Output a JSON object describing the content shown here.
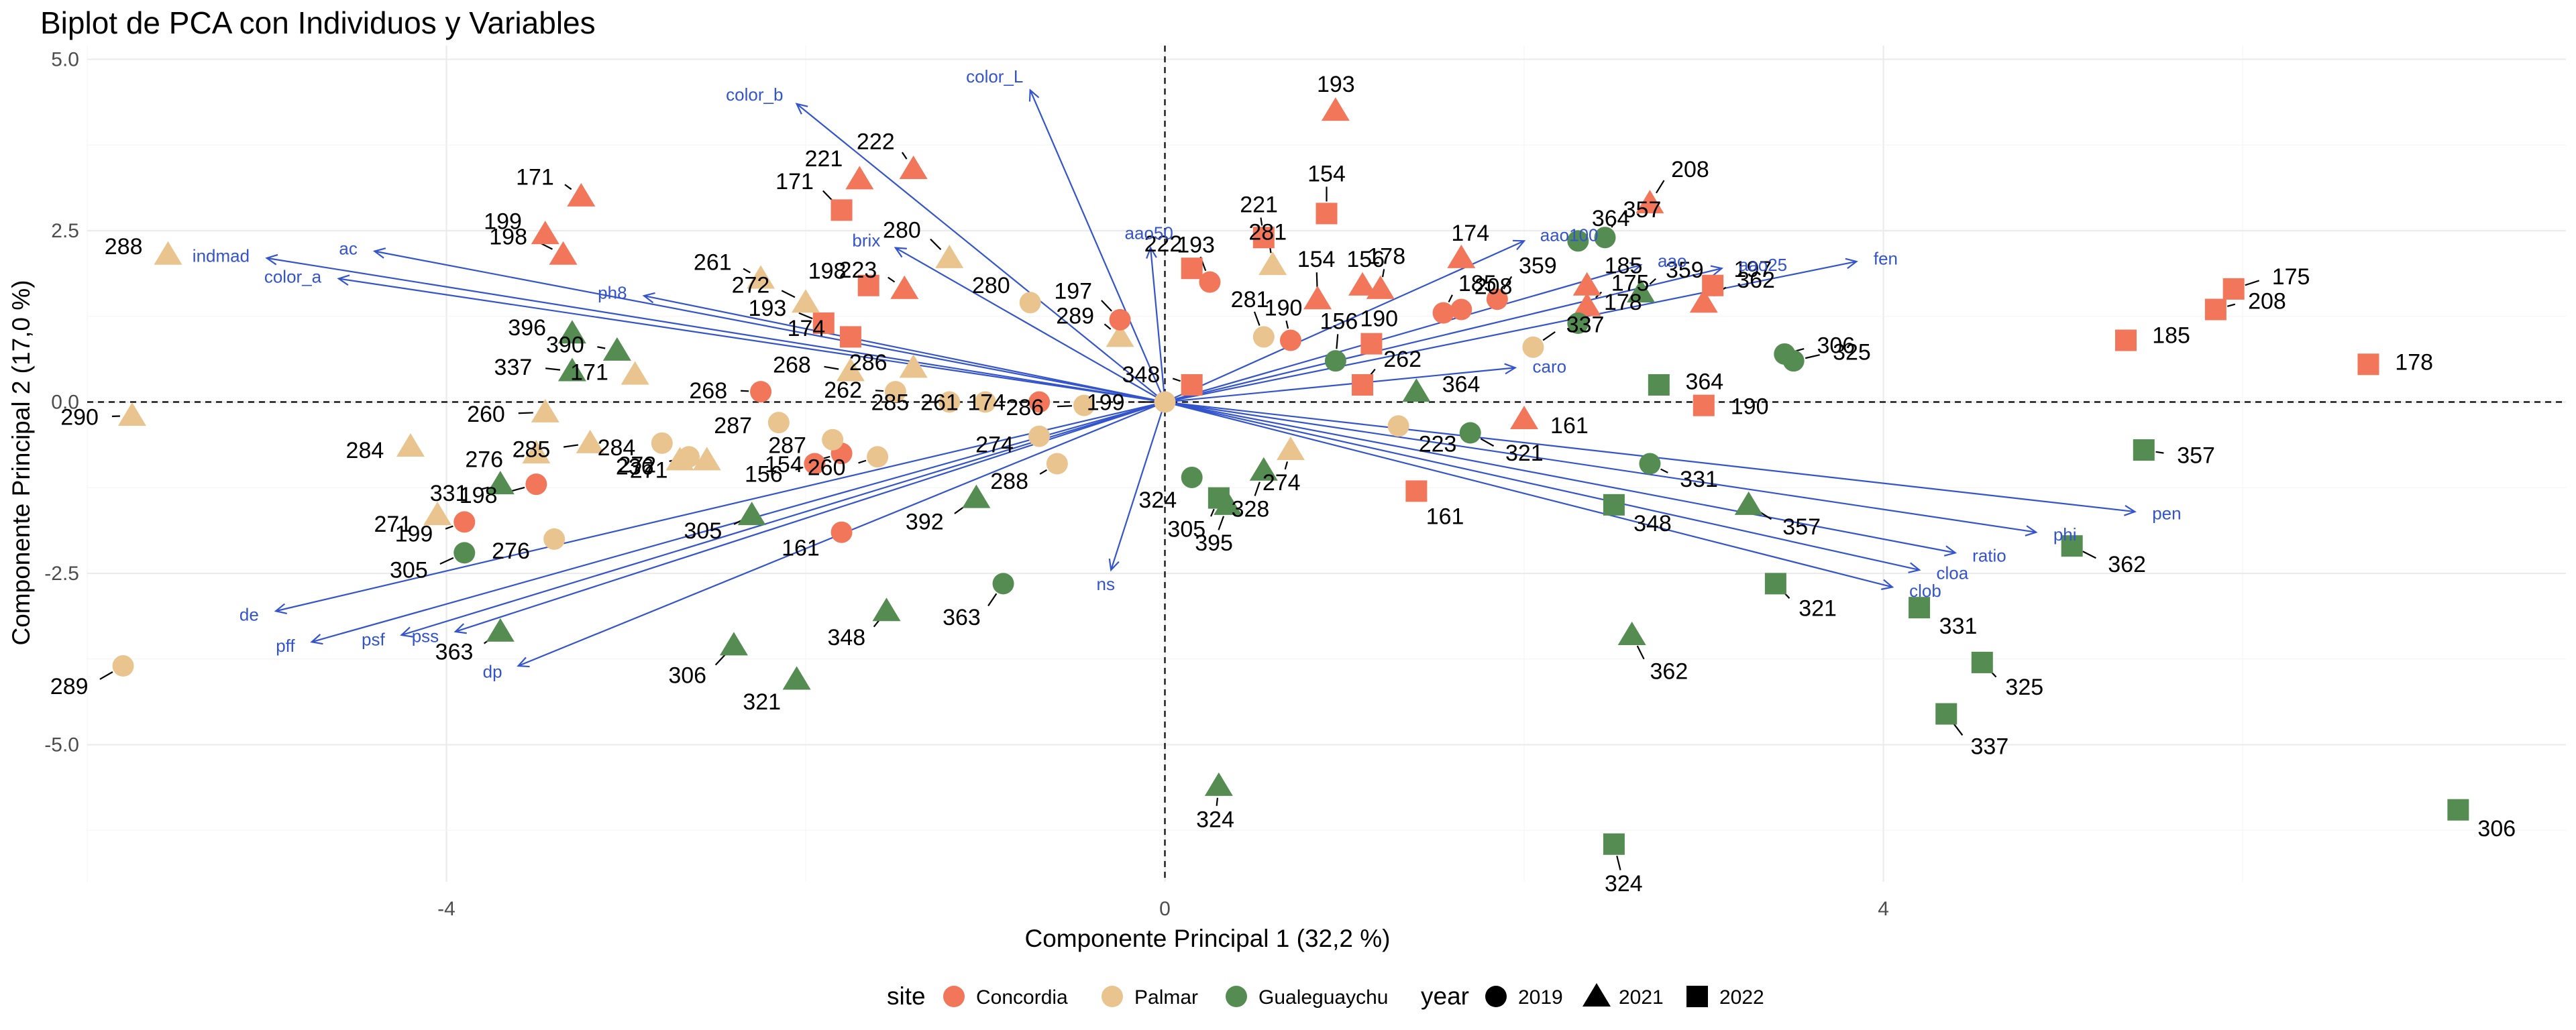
{
  "chart_data": {
    "type": "scatter",
    "title": "Biplot de PCA con Individuos y Variables",
    "xlabel": "Componente Principal 1 (32,2 %)",
    "ylabel": "Componente Principal 2 (17,0 %)",
    "xlim": [
      -6.0,
      7.8
    ],
    "ylim": [
      -7.0,
      5.2
    ],
    "xticks": [
      -4,
      0,
      4
    ],
    "yticks": [
      -5.0,
      -2.5,
      0.0,
      2.5,
      5.0
    ],
    "grid": true,
    "reference_lines": {
      "x": 0,
      "y": 0,
      "style": "dashed"
    },
    "legend": {
      "position": "bottom",
      "site_title": "site",
      "year_title": "year",
      "sites": [
        {
          "name": "Concordia",
          "color": "#f2765a"
        },
        {
          "name": "Palmar",
          "color": "#e9c48f"
        },
        {
          "name": "Gualeguaychu",
          "color": "#548c52"
        }
      ],
      "years": [
        {
          "name": "2019",
          "shape": "circle"
        },
        {
          "name": "2021",
          "shape": "triangle"
        },
        {
          "name": "2022",
          "shape": "square"
        }
      ]
    },
    "variables": [
      {
        "name": "color_L",
        "x": -0.75,
        "y": 4.55
      },
      {
        "name": "color_b",
        "x": -2.05,
        "y": 4.35
      },
      {
        "name": "indmad",
        "x": -5.0,
        "y": 2.1
      },
      {
        "name": "ac",
        "x": -4.4,
        "y": 2.2
      },
      {
        "name": "color_a",
        "x": -4.6,
        "y": 1.8
      },
      {
        "name": "ph8",
        "x": -2.9,
        "y": 1.55
      },
      {
        "name": "brix",
        "x": -1.5,
        "y": 2.25
      },
      {
        "name": "aao50",
        "x": -0.08,
        "y": 2.25
      },
      {
        "name": "aao100",
        "x": 2.0,
        "y": 2.35
      },
      {
        "name": "aao",
        "x": 2.65,
        "y": 2.0
      },
      {
        "name": "aao25",
        "x": 3.1,
        "y": 1.95
      },
      {
        "name": "fen",
        "x": 3.85,
        "y": 2.05
      },
      {
        "name": "caro",
        "x": 1.95,
        "y": 0.5
      },
      {
        "name": "ns",
        "x": -0.3,
        "y": -2.45
      },
      {
        "name": "pen",
        "x": 5.4,
        "y": -1.6
      },
      {
        "name": "phi",
        "x": 4.85,
        "y": -1.9
      },
      {
        "name": "ratio",
        "x": 4.4,
        "y": -2.2
      },
      {
        "name": "cloa",
        "x": 4.2,
        "y": -2.45
      },
      {
        "name": "clob",
        "x": 4.05,
        "y": -2.7
      },
      {
        "name": "de",
        "x": -4.95,
        "y": -3.05
      },
      {
        "name": "pff",
        "x": -4.75,
        "y": -3.5
      },
      {
        "name": "psf",
        "x": -4.25,
        "y": -3.4
      },
      {
        "name": "pss",
        "x": -3.95,
        "y": -3.35
      },
      {
        "name": "dp",
        "x": -3.6,
        "y": -3.85
      }
    ],
    "points": [
      {
        "label": "288",
        "site": "Palmar",
        "year": "2021",
        "x": -5.55,
        "y": 2.15
      },
      {
        "label": "290",
        "site": "Palmar",
        "year": "2021",
        "x": -5.75,
        "y": -0.2
      },
      {
        "label": "289",
        "site": "Palmar",
        "year": "2019",
        "x": -5.8,
        "y": -3.85
      },
      {
        "label": "199",
        "site": "Concordia",
        "year": "2021",
        "x": -3.45,
        "y": 2.45
      },
      {
        "label": "171",
        "site": "Concordia",
        "year": "2021",
        "x": -3.25,
        "y": 3.0
      },
      {
        "label": "198",
        "site": "Concordia",
        "year": "2021",
        "x": -3.35,
        "y": 2.15
      },
      {
        "label": "396",
        "site": "Gualeguaychu",
        "year": "2021",
        "x": -3.3,
        "y": 1.0
      },
      {
        "label": "390",
        "site": "Gualeguaychu",
        "year": "2021",
        "x": -3.05,
        "y": 0.75
      },
      {
        "label": "337",
        "site": "Gualeguaychu",
        "year": "2021",
        "x": -3.3,
        "y": 0.45
      },
      {
        "label": "171",
        "site": "Palmar",
        "year": "2021",
        "x": -2.95,
        "y": 0.4
      },
      {
        "label": "268",
        "site": "Concordia",
        "year": "2019",
        "x": -2.25,
        "y": 0.15
      },
      {
        "label": "260",
        "site": "Palmar",
        "year": "2021",
        "x": -3.45,
        "y": -0.15
      },
      {
        "label": "284",
        "site": "Palmar",
        "year": "2021",
        "x": -4.2,
        "y": -0.65
      },
      {
        "label": "276",
        "site": "Palmar",
        "year": "2021",
        "x": -3.5,
        "y": -0.75
      },
      {
        "label": "285",
        "site": "Palmar",
        "year": "2021",
        "x": -3.2,
        "y": -0.6
      },
      {
        "label": "284",
        "site": "Palmar",
        "year": "2019",
        "x": -2.8,
        "y": -0.6
      },
      {
        "label": "331",
        "site": "Gualeguaychu",
        "year": "2021",
        "x": -3.7,
        "y": -1.2
      },
      {
        "label": "198",
        "site": "Concordia",
        "year": "2019",
        "x": -3.5,
        "y": -1.2
      },
      {
        "label": "271",
        "site": "Palmar",
        "year": "2021",
        "x": -4.05,
        "y": -1.65
      },
      {
        "label": "199",
        "site": "Concordia",
        "year": "2019",
        "x": -3.9,
        "y": -1.75
      },
      {
        "label": "305",
        "site": "Gualeguaychu",
        "year": "2019",
        "x": -3.9,
        "y": -2.2
      },
      {
        "label": "276",
        "site": "Palmar",
        "year": "2019",
        "x": -3.4,
        "y": -2.0
      },
      {
        "label": "363",
        "site": "Gualeguaychu",
        "year": "2021",
        "x": -3.7,
        "y": -3.35
      },
      {
        "label": "306",
        "site": "Gualeguaychu",
        "year": "2021",
        "x": -2.4,
        "y": -3.55
      },
      {
        "label": "321",
        "site": "Gualeguaychu",
        "year": "2021",
        "x": -2.05,
        "y": -4.05
      },
      {
        "label": "348",
        "site": "Gualeguaychu",
        "year": "2021",
        "x": -1.55,
        "y": -3.05
      },
      {
        "label": "363",
        "site": "Gualeguaychu",
        "year": "2019",
        "x": -0.9,
        "y": -2.65
      },
      {
        "label": "161",
        "site": "Concordia",
        "year": "2019",
        "x": -1.8,
        "y": -1.9
      },
      {
        "label": "305",
        "site": "Gualeguaychu",
        "year": "2021",
        "x": -2.3,
        "y": -1.65
      },
      {
        "label": "392",
        "site": "Gualeguaychu",
        "year": "2021",
        "x": -1.05,
        "y": -1.4
      },
      {
        "label": "236",
        "site": "Palmar",
        "year": "2021",
        "x": -2.7,
        "y": -0.85
      },
      {
        "label": "272",
        "site": "Palmar",
        "year": "2019",
        "x": -2.65,
        "y": -0.8
      },
      {
        "label": "271",
        "site": "Palmar",
        "year": "2021",
        "x": -2.55,
        "y": -0.85
      },
      {
        "label": "287",
        "site": "Palmar",
        "year": "2019",
        "x": -2.15,
        "y": -0.3
      },
      {
        "label": "156",
        "site": "Concordia",
        "year": "2019",
        "x": -1.95,
        "y": -0.9
      },
      {
        "label": "154",
        "site": "Concordia",
        "year": "2019",
        "x": -1.8,
        "y": -0.75
      },
      {
        "label": "287",
        "site": "Palmar",
        "year": "2019",
        "x": -1.85,
        "y": -0.55
      },
      {
        "label": "260",
        "site": "Palmar",
        "year": "2019",
        "x": -1.6,
        "y": -0.8
      },
      {
        "label": "268",
        "site": "Palmar",
        "year": "2021",
        "x": -1.75,
        "y": 0.45
      },
      {
        "label": "286",
        "site": "Palmar",
        "year": "2021",
        "x": -1.4,
        "y": 0.5
      },
      {
        "label": "262",
        "site": "Palmar",
        "year": "2019",
        "x": -1.5,
        "y": 0.15
      },
      {
        "label": "285",
        "site": "Palmar",
        "year": "2019",
        "x": -1.2,
        "y": 0.0
      },
      {
        "label": "261",
        "site": "Palmar",
        "year": "2019",
        "x": -1.0,
        "y": 0.0
      },
      {
        "label": "174",
        "site": "Concordia",
        "year": "2019",
        "x": -0.7,
        "y": 0.0
      },
      {
        "label": "286",
        "site": "Palmar",
        "year": "2019",
        "x": -0.45,
        "y": -0.05
      },
      {
        "label": "274",
        "site": "Palmar",
        "year": "2019",
        "x": -0.7,
        "y": -0.5
      },
      {
        "label": "288",
        "site": "Palmar",
        "year": "2019",
        "x": -0.6,
        "y": -0.9
      },
      {
        "label": "193",
        "site": "Concordia",
        "year": "2022",
        "x": -1.9,
        "y": 1.15
      },
      {
        "label": "174",
        "site": "Concordia",
        "year": "2022",
        "x": -1.75,
        "y": 0.95
      },
      {
        "label": "261",
        "site": "Palmar",
        "year": "2021",
        "x": -2.25,
        "y": 1.8
      },
      {
        "label": "272",
        "site": "Palmar",
        "year": "2021",
        "x": -2.0,
        "y": 1.45
      },
      {
        "label": "198",
        "site": "Concordia",
        "year": "2022",
        "x": -1.65,
        "y": 1.7
      },
      {
        "label": "223",
        "site": "Concordia",
        "year": "2021",
        "x": -1.45,
        "y": 1.65
      },
      {
        "label": "280",
        "site": "Palmar",
        "year": "2021",
        "x": -1.2,
        "y": 2.1
      },
      {
        "label": "280",
        "site": "Palmar",
        "year": "2019",
        "x": -0.75,
        "y": 1.45
      },
      {
        "label": "289",
        "site": "Palmar",
        "year": "2021",
        "x": -0.25,
        "y": 0.95
      },
      {
        "label": "197",
        "site": "Concordia",
        "year": "2019",
        "x": -0.25,
        "y": 1.2
      },
      {
        "label": "221",
        "site": "Concordia",
        "year": "2021",
        "x": -1.7,
        "y": 3.25
      },
      {
        "label": "222",
        "site": "Concordia",
        "year": "2021",
        "x": -1.4,
        "y": 3.4
      },
      {
        "label": "171",
        "site": "Concordia",
        "year": "2022",
        "x": -1.8,
        "y": 2.8
      },
      {
        "label": "193",
        "site": "Concordia",
        "year": "2021",
        "x": 0.95,
        "y": 4.25
      },
      {
        "label": "221",
        "site": "Concordia",
        "year": "2022",
        "x": 0.55,
        "y": 2.4
      },
      {
        "label": "154",
        "site": "Concordia",
        "year": "2022",
        "x": 0.9,
        "y": 2.75
      },
      {
        "label": "222",
        "site": "Concordia",
        "year": "2022",
        "x": 0.15,
        "y": 1.95
      },
      {
        "label": "281",
        "site": "Palmar",
        "year": "2021",
        "x": 0.6,
        "y": 2.0
      },
      {
        "label": "193",
        "site": "Concordia",
        "year": "2019",
        "x": 0.25,
        "y": 1.75
      },
      {
        "label": "156",
        "site": "Concordia",
        "year": "2021",
        "x": 1.1,
        "y": 1.7
      },
      {
        "label": "178",
        "site": "Concordia",
        "year": "2021",
        "x": 1.2,
        "y": 1.65
      },
      {
        "label": "154",
        "site": "Concordia",
        "year": "2021",
        "x": 0.85,
        "y": 1.5
      },
      {
        "label": "174",
        "site": "Concordia",
        "year": "2021",
        "x": 1.65,
        "y": 2.1
      },
      {
        "label": "190",
        "site": "Concordia",
        "year": "2019",
        "x": 0.7,
        "y": 0.9
      },
      {
        "label": "281",
        "site": "Palmar",
        "year": "2019",
        "x": 0.55,
        "y": 0.95
      },
      {
        "label": "190",
        "site": "Concordia",
        "year": "2022",
        "x": 1.15,
        "y": 0.85
      },
      {
        "label": "185",
        "site": "Concordia",
        "year": "2019",
        "x": 1.55,
        "y": 1.3
      },
      {
        "label": "359",
        "site": "Concordia",
        "year": "2019",
        "x": 1.85,
        "y": 1.5
      },
      {
        "label": "208",
        "site": "Concordia",
        "year": "2019",
        "x": 1.65,
        "y": 1.35
      },
      {
        "label": "175",
        "site": "Concordia",
        "year": "2021",
        "x": 2.35,
        "y": 1.4
      },
      {
        "label": "156",
        "site": "Gualeguaychu",
        "year": "2019",
        "x": 0.95,
        "y": 0.6
      },
      {
        "label": "364",
        "site": "Gualeguaychu",
        "year": "2021",
        "x": 1.4,
        "y": 0.15
      },
      {
        "label": "348",
        "site": "Concordia",
        "year": "2022",
        "x": 0.15,
        "y": 0.25
      },
      {
        "label": "199",
        "site": "Palmar",
        "year": "2019",
        "x": 0.0,
        "y": 0.0
      },
      {
        "label": "223",
        "site": "Palmar",
        "year": "2019",
        "x": 1.3,
        "y": -0.35
      },
      {
        "label": "262",
        "site": "Concordia",
        "year": "2022",
        "x": 1.1,
        "y": 0.25
      },
      {
        "label": "321",
        "site": "Gualeguaychu",
        "year": "2019",
        "x": 1.7,
        "y": -0.45
      },
      {
        "label": "161",
        "site": "Concordia",
        "year": "2021",
        "x": 2.0,
        "y": -0.25
      },
      {
        "label": "274",
        "site": "Palmar",
        "year": "2021",
        "x": 0.7,
        "y": -0.7
      },
      {
        "label": "328",
        "site": "Gualeguaychu",
        "year": "2021",
        "x": 0.55,
        "y": -1.0
      },
      {
        "label": "324",
        "site": "Gualeguaychu",
        "year": "2019",
        "x": 0.15,
        "y": -1.1
      },
      {
        "label": "305",
        "site": "Gualeguaychu",
        "year": "2022",
        "x": 0.3,
        "y": -1.4
      },
      {
        "label": "395",
        "site": "Gualeguaychu",
        "year": "2021",
        "x": 0.35,
        "y": -1.5
      },
      {
        "label": "161",
        "site": "Concordia",
        "year": "2022",
        "x": 1.4,
        "y": -1.3
      },
      {
        "label": "324",
        "site": "Gualeguaychu",
        "year": "2021",
        "x": 0.3,
        "y": -5.6
      },
      {
        "label": "324",
        "site": "Gualeguaychu",
        "year": "2022",
        "x": 2.5,
        "y": -6.45
      },
      {
        "label": "364",
        "site": "Gualeguaychu",
        "year": "2019",
        "x": 2.3,
        "y": 2.35
      },
      {
        "label": "357",
        "site": "Gualeguaychu",
        "year": "2019",
        "x": 2.45,
        "y": 2.4
      },
      {
        "label": "208",
        "site": "Concordia",
        "year": "2021",
        "x": 2.7,
        "y": 2.9
      },
      {
        "label": "185",
        "site": "Concordia",
        "year": "2021",
        "x": 2.35,
        "y": 1.7
      },
      {
        "label": "359",
        "site": "Gualeguaychu",
        "year": "2021",
        "x": 2.65,
        "y": 1.6
      },
      {
        "label": "362",
        "site": "Concordia",
        "year": "2021",
        "x": 3.0,
        "y": 1.45
      },
      {
        "label": "197",
        "site": "Concordia",
        "year": "2022",
        "x": 3.05,
        "y": 1.7
      },
      {
        "label": "178",
        "site": "Gualeguaychu",
        "year": "2019",
        "x": 2.3,
        "y": 1.15
      },
      {
        "label": "337",
        "site": "Palmar",
        "year": "2019",
        "x": 2.05,
        "y": 0.8
      },
      {
        "label": "364",
        "site": "Gualeguaychu",
        "year": "2022",
        "x": 2.75,
        "y": 0.25
      },
      {
        "label": "306",
        "site": "Gualeguaychu",
        "year": "2019",
        "x": 3.45,
        "y": 0.7
      },
      {
        "label": "325",
        "site": "Gualeguaychu",
        "year": "2019",
        "x": 3.5,
        "y": 0.6
      },
      {
        "label": "190",
        "site": "Concordia",
        "year": "2022",
        "x": 3.0,
        "y": -0.05
      },
      {
        "label": "331",
        "site": "Gualeguaychu",
        "year": "2019",
        "x": 2.7,
        "y": -0.9
      },
      {
        "label": "357",
        "site": "Gualeguaychu",
        "year": "2021",
        "x": 3.25,
        "y": -1.5
      },
      {
        "label": "348",
        "site": "Gualeguaychu",
        "year": "2022",
        "x": 2.5,
        "y": -1.5
      },
      {
        "label": "321",
        "site": "Gualeguaychu",
        "year": "2022",
        "x": 3.4,
        "y": -2.65
      },
      {
        "label": "362",
        "site": "Gualeguaychu",
        "year": "2021",
        "x": 2.6,
        "y": -3.4
      },
      {
        "label": "185",
        "site": "Concordia",
        "year": "2022",
        "x": 5.35,
        "y": 0.9
      },
      {
        "label": "208",
        "site": "Concordia",
        "year": "2022",
        "x": 5.85,
        "y": 1.35
      },
      {
        "label": "175",
        "site": "Concordia",
        "year": "2022",
        "x": 5.95,
        "y": 1.65
      },
      {
        "label": "178",
        "site": "Concordia",
        "year": "2022",
        "x": 6.7,
        "y": 0.55
      },
      {
        "label": "357",
        "site": "Gualeguaychu",
        "year": "2022",
        "x": 5.45,
        "y": -0.7
      },
      {
        "label": "362",
        "site": "Gualeguaychu",
        "year": "2022",
        "x": 5.05,
        "y": -2.1
      },
      {
        "label": "331",
        "site": "Gualeguaychu",
        "year": "2022",
        "x": 4.2,
        "y": -3.0
      },
      {
        "label": "325",
        "site": "Gualeguaychu",
        "year": "2022",
        "x": 4.55,
        "y": -3.8
      },
      {
        "label": "337",
        "site": "Gualeguaychu",
        "year": "2022",
        "x": 4.35,
        "y": -4.55
      },
      {
        "label": "306",
        "site": "Gualeguaychu",
        "year": "2022",
        "x": 7.2,
        "y": -5.95
      }
    ]
  }
}
